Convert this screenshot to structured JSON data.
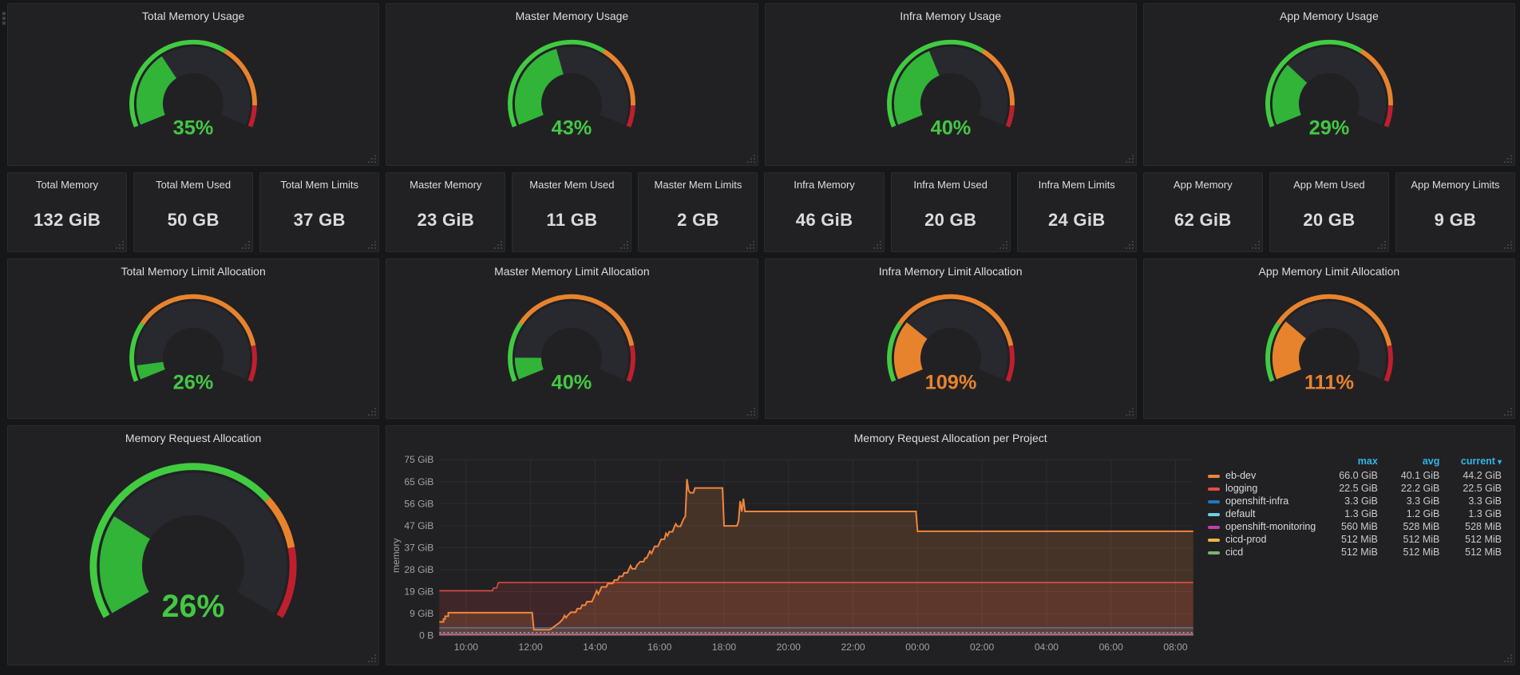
{
  "colors": {
    "page_bg": "#161719",
    "panel_bg": "#212124",
    "gauge_green_fill": "#31b438",
    "gauge_green_ring": "#41cb41",
    "gauge_orange": "#e8832d",
    "gauge_red": "#bf1f2d",
    "value_green": "#43c843",
    "value_orange": "#e8832d",
    "legend_header_blue": "#33b5e5"
  },
  "usage_gauges": [
    {
      "title": "Total Memory Usage",
      "value": 35,
      "display": "35%",
      "max": 100,
      "state": "ok"
    },
    {
      "title": "Master Memory Usage",
      "value": 43,
      "display": "43%",
      "max": 100,
      "state": "ok"
    },
    {
      "title": "Infra Memory Usage",
      "value": 40,
      "display": "40%",
      "max": 100,
      "state": "ok"
    },
    {
      "title": "App Memory Usage",
      "value": 29,
      "display": "29%",
      "max": 100,
      "state": "ok"
    }
  ],
  "stat_panels": [
    {
      "title": "Total Memory",
      "value": "132 GiB"
    },
    {
      "title": "Total Mem Used",
      "value": "50 GB"
    },
    {
      "title": "Total Mem Limits",
      "value": "37 GB"
    },
    {
      "title": "Master Memory",
      "value": "23 GiB"
    },
    {
      "title": "Master Mem Used",
      "value": "11 GB"
    },
    {
      "title": "Master Mem Limits",
      "value": "2 GB"
    },
    {
      "title": "Infra Memory",
      "value": "46 GiB"
    },
    {
      "title": "Infra Mem Used",
      "value": "20 GB"
    },
    {
      "title": "Infra Mem Limits",
      "value": "24 GiB"
    },
    {
      "title": "App Memory",
      "value": "62 GiB"
    },
    {
      "title": "App Mem Used",
      "value": "20 GB"
    },
    {
      "title": "App Memory Limits",
      "value": "9 GB"
    }
  ],
  "alloc_gauges": [
    {
      "title": "Total Memory Limit Allocation",
      "value": 26,
      "display": "26%",
      "max": 400,
      "state": "ok"
    },
    {
      "title": "Master Memory Limit Allocation",
      "value": 40,
      "display": "40%",
      "max": 400,
      "state": "ok"
    },
    {
      "title": "Infra Memory Limit Allocation",
      "value": 109,
      "display": "109%",
      "max": 400,
      "state": "warn"
    },
    {
      "title": "App Memory Limit Allocation",
      "value": 111,
      "display": "111%",
      "max": 400,
      "state": "warn"
    }
  ],
  "request_gauge": {
    "title": "Memory Request Allocation",
    "value": 26,
    "display": "26%",
    "max": 100,
    "state": "ok"
  },
  "chart_data": {
    "type": "area",
    "title": "Memory Request Allocation per Project",
    "xlabel": "",
    "ylabel": "memory",
    "grid": true,
    "xlim_hours": [
      9.17,
      32.55
    ],
    "ylim_gib": [
      0,
      74.51
    ],
    "x_ticks": [
      "10:00",
      "12:00",
      "14:00",
      "16:00",
      "18:00",
      "20:00",
      "22:00",
      "00:00",
      "02:00",
      "04:00",
      "06:00",
      "08:00"
    ],
    "x_tick_hours": [
      10,
      12,
      14,
      16,
      18,
      20,
      22,
      24,
      26,
      28,
      30,
      32
    ],
    "y_ticks": [
      "0 B",
      "9 GiB",
      "19 GiB",
      "28 GiB",
      "37 GiB",
      "47 GiB",
      "56 GiB",
      "65 GiB",
      "75 GiB"
    ],
    "y_tick_values_gib": [
      0,
      9.31,
      18.63,
      27.94,
      37.25,
      46.57,
      55.88,
      65.19,
      74.51
    ],
    "legend": {
      "position": "right-table",
      "columns": [
        "max",
        "avg",
        "current"
      ],
      "sorted_by": "current",
      "sort_dir": "desc",
      "sort_caret": "▾"
    },
    "series": [
      {
        "name": "eb-dev",
        "color": "#EF843C",
        "width": 2,
        "fill_opacity": 0.18,
        "max": "66.0 GiB",
        "avg": "40.1 GiB",
        "current": "44.2 GiB",
        "points": [
          [
            9.17,
            5.8
          ],
          [
            9.3,
            5.8
          ],
          [
            9.3,
            7.0
          ],
          [
            9.35,
            7.0
          ],
          [
            9.35,
            8.2
          ],
          [
            9.45,
            8.2
          ],
          [
            9.45,
            9.7
          ],
          [
            12.05,
            9.7
          ],
          [
            12.1,
            2.5
          ],
          [
            12.6,
            2.5
          ],
          [
            12.75,
            4.0
          ],
          [
            12.9,
            5.5
          ],
          [
            13.0,
            7.0
          ],
          [
            13.05,
            8.5
          ],
          [
            13.1,
            7.6
          ],
          [
            13.15,
            8.5
          ],
          [
            13.25,
            9.9
          ],
          [
            13.4,
            9.9
          ],
          [
            13.45,
            11.4
          ],
          [
            13.55,
            11.4
          ],
          [
            13.6,
            12.9
          ],
          [
            13.7,
            12.9
          ],
          [
            13.75,
            14.4
          ],
          [
            13.9,
            14.4
          ],
          [
            13.95,
            15.9
          ],
          [
            14.0,
            17.4
          ],
          [
            14.05,
            19.0
          ],
          [
            14.1,
            17.6
          ],
          [
            14.15,
            19.0
          ],
          [
            14.2,
            20.6
          ],
          [
            14.35,
            20.6
          ],
          [
            14.4,
            22.1
          ],
          [
            14.55,
            22.1
          ],
          [
            14.6,
            23.6
          ],
          [
            14.7,
            23.6
          ],
          [
            14.75,
            25.1
          ],
          [
            14.85,
            25.1
          ],
          [
            14.9,
            26.6
          ],
          [
            15.0,
            26.6
          ],
          [
            15.05,
            28.1
          ],
          [
            15.1,
            29.6
          ],
          [
            15.15,
            28.3
          ],
          [
            15.25,
            28.3
          ],
          [
            15.3,
            29.8
          ],
          [
            15.4,
            31.3
          ],
          [
            15.5,
            31.3
          ],
          [
            15.55,
            32.8
          ],
          [
            15.6,
            32.8
          ],
          [
            15.65,
            34.3
          ],
          [
            15.7,
            35.8
          ],
          [
            15.75,
            34.8
          ],
          [
            15.8,
            36.3
          ],
          [
            15.85,
            37.8
          ],
          [
            15.95,
            37.8
          ],
          [
            16.0,
            39.3
          ],
          [
            16.05,
            40.8
          ],
          [
            16.15,
            40.8
          ],
          [
            16.2,
            43.3
          ],
          [
            16.25,
            42.3
          ],
          [
            16.3,
            44.0
          ],
          [
            16.4,
            44.0
          ],
          [
            16.45,
            45.8
          ],
          [
            16.5,
            47.3
          ],
          [
            16.55,
            46.3
          ],
          [
            16.65,
            46.3
          ],
          [
            16.7,
            48.0
          ],
          [
            16.75,
            49.5
          ],
          [
            16.8,
            50.5
          ],
          [
            16.85,
            66.3
          ],
          [
            16.9,
            61.5
          ],
          [
            16.95,
            60.5
          ],
          [
            17.05,
            60.5
          ],
          [
            17.1,
            62.5
          ],
          [
            17.95,
            62.5
          ],
          [
            18.0,
            46.5
          ],
          [
            18.4,
            46.5
          ],
          [
            18.45,
            48.5
          ],
          [
            18.5,
            57.0
          ],
          [
            18.55,
            52.5
          ],
          [
            18.6,
            58.0
          ],
          [
            18.65,
            52.6
          ],
          [
            23.95,
            52.6
          ],
          [
            24.0,
            44.2
          ],
          [
            32.55,
            44.2
          ]
        ]
      },
      {
        "name": "logging",
        "color": "#E24D42",
        "width": 1.5,
        "fill_opacity": 0.16,
        "max": "22.5 GiB",
        "avg": "22.2 GiB",
        "current": "22.5 GiB",
        "points": [
          [
            9.17,
            19.0
          ],
          [
            10.82,
            19.0
          ],
          [
            10.85,
            20.2
          ],
          [
            10.95,
            20.2
          ],
          [
            11.0,
            22.5
          ],
          [
            32.55,
            22.5
          ]
        ]
      },
      {
        "name": "openshift-infra",
        "color": "#1F78C1",
        "width": 1.5,
        "fill_opacity": 0.14,
        "max": "3.3 GiB",
        "avg": "3.3 GiB",
        "current": "3.3 GiB",
        "points": [
          [
            9.17,
            3.3
          ],
          [
            32.55,
            3.3
          ]
        ]
      },
      {
        "name": "default",
        "color": "#6ED0E0",
        "width": 1.5,
        "fill_opacity": 0.12,
        "dash": "2,3",
        "max": "1.3 GiB",
        "avg": "1.2 GiB",
        "current": "1.3 GiB",
        "points": [
          [
            9.17,
            1.3
          ],
          [
            32.55,
            1.3
          ]
        ]
      },
      {
        "name": "openshift-monitoring",
        "color": "#BA43A9",
        "width": 1.5,
        "fill_opacity": 0.2,
        "max": "560 MiB",
        "avg": "528 MiB",
        "current": "528 MiB",
        "points": [
          [
            9.17,
            0.53
          ],
          [
            32.55,
            0.53
          ]
        ]
      },
      {
        "name": "cicd-prod",
        "color": "#EAB839",
        "width": 1.5,
        "fill_opacity": 0.15,
        "max": "512 MiB",
        "avg": "512 MiB",
        "current": "512 MiB",
        "points": [
          [
            9.17,
            0.5
          ],
          [
            32.55,
            0.5
          ]
        ]
      },
      {
        "name": "cicd",
        "color": "#7EB26D",
        "width": 1.5,
        "fill_opacity": 0.15,
        "max": "512 MiB",
        "avg": "512 MiB",
        "current": "512 MiB",
        "points": [
          [
            9.17,
            0.5
          ],
          [
            32.55,
            0.5
          ]
        ]
      }
    ]
  }
}
